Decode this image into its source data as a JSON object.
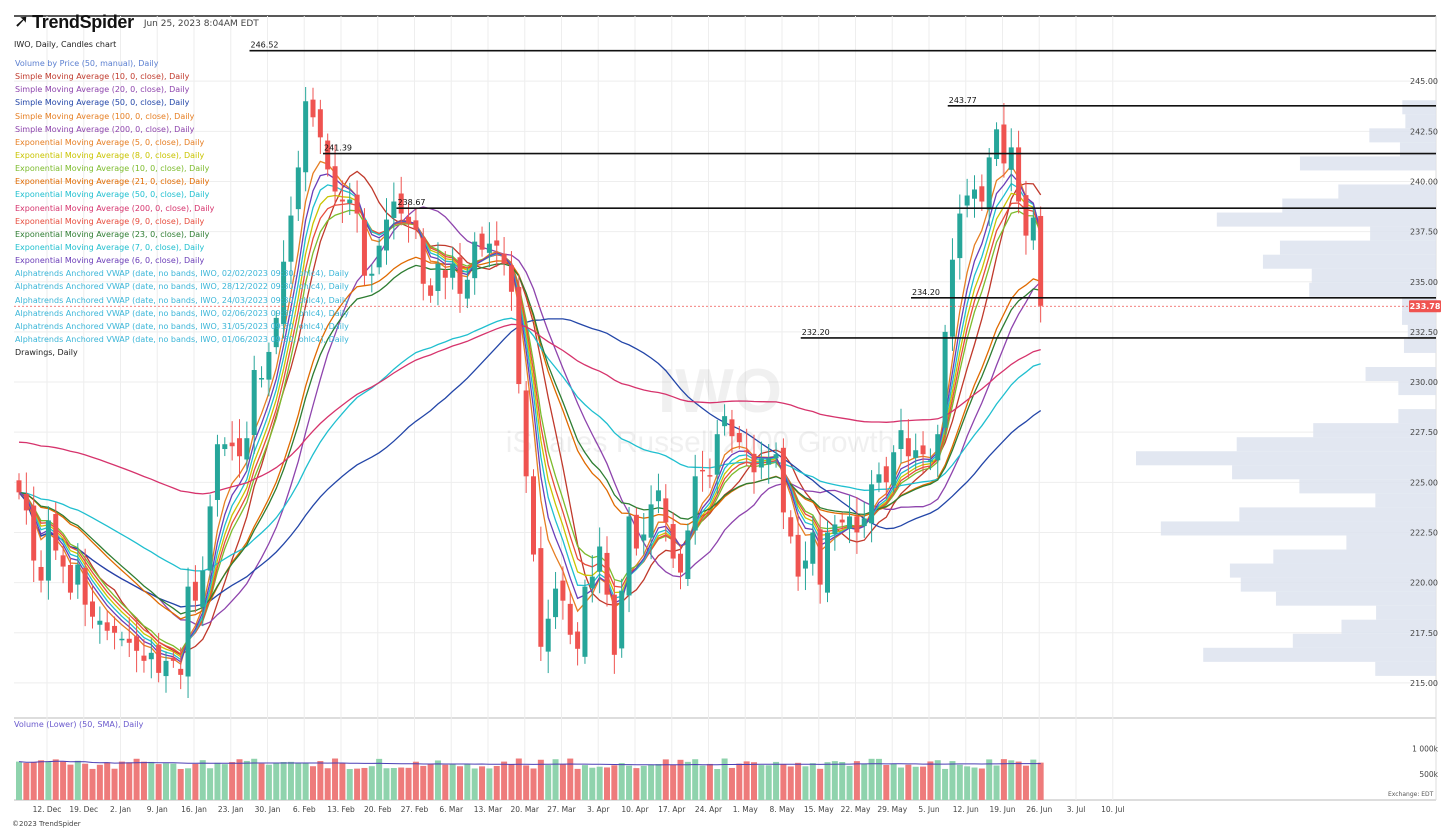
{
  "header": {
    "logo_text": "TrendSpider",
    "datetime": "Jun 25, 2023 8:04AM EDT",
    "symbol_line": "IWO, Daily, Candles chart",
    "watermark_symbol": "IWO",
    "watermark_name": "iShares Russell 2000 Growth"
  },
  "indicators": [
    {
      "label": "Volume by Price (50, manual), Daily",
      "color": "#5b7fd0"
    },
    {
      "label": "Simple Moving Average (10, 0, close), Daily",
      "color": "#c0392b"
    },
    {
      "label": "Simple Moving Average (20, 0, close), Daily",
      "color": "#8e44ad"
    },
    {
      "label": "Simple Moving Average (50, 0, close), Daily",
      "color": "#2346a8"
    },
    {
      "label": "Simple Moving Average (100, 0, close), Daily",
      "color": "#e67e22"
    },
    {
      "label": "Simple Moving Average (200, 0, close), Daily",
      "color": "#8e44ad"
    },
    {
      "label": "Exponential Moving Average (5, 0, close), Daily",
      "color": "#e67e22"
    },
    {
      "label": "Exponential Moving Average (8, 0, close), Daily",
      "color": "#c9c400"
    },
    {
      "label": "Exponential Moving Average (10, 0, close), Daily",
      "color": "#7cbb2c"
    },
    {
      "label": "Exponential Moving Average (21, 0, close), Daily",
      "color": "#e06a00"
    },
    {
      "label": "Exponential Moving Average (50, 0, close), Daily",
      "color": "#1fbfcf"
    },
    {
      "label": "Exponential Moving Average (200, 0, close), Daily",
      "color": "#d6336c"
    },
    {
      "label": "Exponential Moving Average (9, 0, close), Daily",
      "color": "#e74c3c"
    },
    {
      "label": "Exponential Moving Average (23, 0, close), Daily",
      "color": "#2e7d32"
    },
    {
      "label": "Exponential Moving Average (7, 0, close), Daily",
      "color": "#1fbfcf"
    },
    {
      "label": "Exponential Moving Average (6, 0, close), Daily",
      "color": "#6a3db8"
    },
    {
      "label": "Alphatrends Anchored VWAP (date, no bands, IWO, 02/02/2023 09:30, ohlc4), Daily",
      "color": "#3bb6d8"
    },
    {
      "label": "Alphatrends Anchored VWAP (date, no bands, IWO, 28/12/2022 09:30, ohlc4), Daily",
      "color": "#3bb6d8"
    },
    {
      "label": "Alphatrends Anchored VWAP (date, no bands, IWO, 24/03/2023 09:30, ohlc4), Daily",
      "color": "#3bb6d8"
    },
    {
      "label": "Alphatrends Anchored VWAP (date, no bands, IWO, 02/06/2023 09:30, ohlc4), Daily",
      "color": "#3bb6d8"
    },
    {
      "label": "Alphatrends Anchored VWAP (date, no bands, IWO, 31/05/2023 09:30, ohlc4), Daily",
      "color": "#3bb6d8"
    },
    {
      "label": "Alphatrends Anchored VWAP (date, no bands, IWO, 01/06/2023 09:30, ohlc4), Daily",
      "color": "#3bb6d8"
    },
    {
      "label": "Drawings, Daily",
      "color": "#222222"
    }
  ],
  "volume_panel": {
    "title": "Volume (Lower) (50, SMA), Daily",
    "axis_labels": [
      "1 000k",
      "500k"
    ]
  },
  "footer": {
    "copyright": "©2023 TrendSpider",
    "exchange": "Exchange: EDT"
  },
  "colors": {
    "up": "#26a69a",
    "down": "#ef5350",
    "vol_up": "#8fd3ad",
    "vol_down": "#ee7b7b",
    "vbp": "#dde3ee",
    "price_tag": "#ef5350"
  },
  "chart_data": {
    "type": "candlestick",
    "title": "IWO, Daily, Candles chart",
    "y_axis_ticks": [
      215.0,
      217.5,
      220.0,
      222.5,
      225.0,
      227.5,
      230.0,
      232.5,
      235.0,
      237.5,
      240.0,
      242.5,
      245.0
    ],
    "ylim": [
      213.25,
      248.25
    ],
    "x_axis_labels": [
      "12. Dec",
      "19. Dec",
      "2. Jan",
      "9. Jan",
      "16. Jan",
      "23. Jan",
      "30. Jan",
      "6. Feb",
      "13. Feb",
      "20. Feb",
      "27. Feb",
      "6. Mar",
      "13. Mar",
      "20. Mar",
      "27. Mar",
      "3. Apr",
      "10. Apr",
      "17. Apr",
      "24. Apr",
      "1. May",
      "8. May",
      "15. May",
      "22. May",
      "29. May",
      "5. Jun",
      "12. Jun",
      "19. Jun",
      "26. Jun",
      "3. Jul",
      "10. Jul"
    ],
    "last_price": "233.78",
    "horizontal_levels": [
      {
        "label": "246.52",
        "value": 246.52,
        "start": "30. Jan"
      },
      {
        "label": "243.77",
        "value": 243.77,
        "start": "12. Jun"
      },
      {
        "label": "241.39",
        "value": 241.39,
        "start": "13. Feb"
      },
      {
        "label": "238.67",
        "value": 238.67,
        "start": "27. Feb"
      },
      {
        "label": "234.20",
        "value": 234.2,
        "start": "5. Jun"
      },
      {
        "label": "232.20",
        "value": 232.2,
        "start": "15. May"
      }
    ],
    "closes": [
      224.5,
      223.6,
      221.1,
      220.1,
      223.1,
      221.6,
      220.8,
      219.5,
      220.9,
      218.9,
      218.3,
      218.1,
      217.6,
      217.5,
      217.2,
      217.0,
      216.6,
      216.1,
      216.5,
      215.5,
      216.1,
      216.1,
      215.4,
      219.8,
      219.1,
      220.6,
      223.8,
      226.9,
      226.9,
      226.8,
      226.3,
      227.2,
      230.6,
      230.2,
      231.5,
      233.2,
      236.0,
      238.3,
      240.7,
      244.0,
      243.2,
      242.2,
      240.6,
      239.5,
      239.0,
      239.1,
      238.4,
      235.3,
      235.4,
      236.8,
      238.1,
      239.0,
      238.4,
      237.9,
      237.6,
      234.9,
      234.3,
      235.9,
      235.2,
      235.9,
      234.4,
      235.1,
      237.0,
      236.6,
      236.9,
      236.8,
      235.9,
      234.5,
      229.9,
      225.3,
      221.4,
      216.8,
      218.2,
      219.7,
      219.1,
      217.4,
      216.7,
      219.8,
      220.3,
      221.8,
      219.4,
      216.4,
      219.6,
      223.3,
      221.7,
      222.4,
      223.9,
      224.6,
      223.0,
      221.2,
      220.5,
      222.6,
      225.3,
      225.6,
      225.3,
      227.4,
      228.3,
      227.3,
      227.0,
      226.5,
      225.5,
      226.2,
      226.2,
      226.4,
      223.5,
      222.3,
      220.3,
      221.1,
      222.5,
      219.9,
      222.5,
      222.9,
      223.0,
      223.3,
      222.5,
      223.2,
      224.9,
      225.4,
      225.0,
      226.5,
      227.6,
      226.3,
      226.6,
      226.4,
      226.1,
      227.4,
      232.5,
      236.1,
      238.4,
      239.3,
      239.6,
      239.0,
      241.2,
      242.6,
      240.9,
      241.7,
      239.0,
      237.3,
      238.2,
      233.8
    ],
    "volume_scale_k": [
      0,
      1300
    ],
    "volume_k": [
      745,
      719,
      738,
      770,
      754,
      788,
      745,
      686,
      761,
      704,
      603,
      683,
      731,
      607,
      745,
      731,
      800,
      743,
      739,
      697,
      712,
      705,
      602,
      615,
      701,
      773,
      616,
      721,
      696,
      736,
      791,
      758,
      800,
      706,
      685,
      727,
      737,
      740,
      712,
      720,
      655,
      756,
      616,
      805,
      709,
      601,
      609,
      622,
      656,
      798,
      616,
      621,
      630,
      624,
      743,
      661,
      697,
      767,
      684,
      696,
      655,
      694,
      612,
      653,
      613,
      660,
      745,
      698,
      805,
      671,
      612,
      781,
      678,
      791,
      699,
      804,
      604,
      677,
      626,
      646,
      632,
      674,
      716,
      667,
      619,
      662,
      681,
      698,
      788,
      686,
      780,
      740,
      791,
      667,
      700,
      601,
      805,
      622,
      705,
      749,
      733,
      678,
      674,
      739,
      696,
      651,
      721,
      654,
      714,
      605,
      734,
      754,
      737,
      661,
      754,
      708,
      799,
      798,
      679,
      703,
      630,
      684,
      645,
      648,
      748,
      772,
      603,
      755,
      683,
      653,
      630,
      611,
      788,
      669,
      793,
      770,
      745,
      666,
      784,
      725
    ]
  }
}
